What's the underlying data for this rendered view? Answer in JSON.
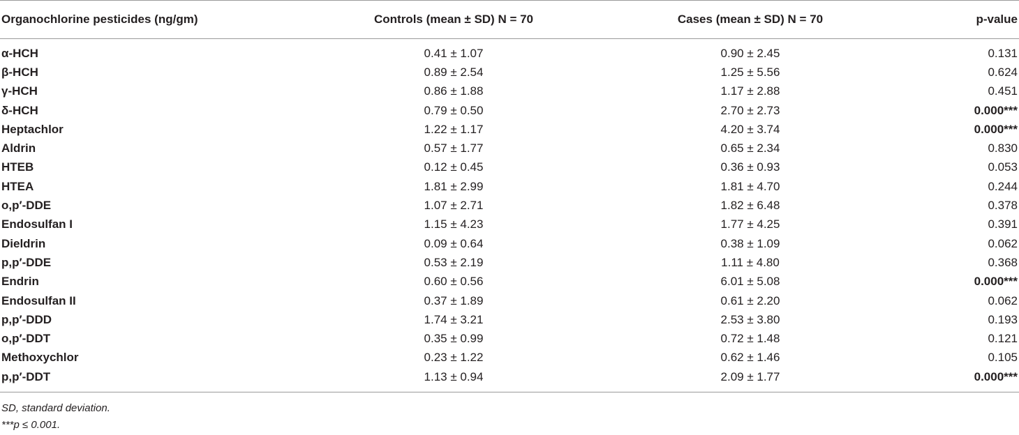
{
  "table": {
    "headers": [
      "Organochlorine pesticides (ng/gm)",
      "Controls (mean ± SD) N = 70",
      "Cases (mean ± SD) N = 70",
      "p-value"
    ],
    "rows": [
      {
        "name": "α-HCH",
        "controls": "0.41 ± 1.07",
        "cases": "0.90 ± 2.45",
        "p": "0.131",
        "sig": false
      },
      {
        "name": "β-HCH",
        "controls": "0.89 ± 2.54",
        "cases": "1.25 ± 5.56",
        "p": "0.624",
        "sig": false
      },
      {
        "name": "γ-HCH",
        "controls": "0.86 ± 1.88",
        "cases": "1.17 ± 2.88",
        "p": "0.451",
        "sig": false
      },
      {
        "name": "δ-HCH",
        "controls": "0.79 ± 0.50",
        "cases": "2.70 ± 2.73",
        "p": "0.000***",
        "sig": true
      },
      {
        "name": "Heptachlor",
        "controls": "1.22 ± 1.17",
        "cases": "4.20 ± 3.74",
        "p": "0.000***",
        "sig": true
      },
      {
        "name": "Aldrin",
        "controls": "0.57 ± 1.77",
        "cases": "0.65 ± 2.34",
        "p": "0.830",
        "sig": false
      },
      {
        "name": "HTEB",
        "controls": "0.12 ± 0.45",
        "cases": "0.36 ± 0.93",
        "p": "0.053",
        "sig": false
      },
      {
        "name": "HTEA",
        "controls": "1.81 ± 2.99",
        "cases": "1.81 ± 4.70",
        "p": "0.244",
        "sig": false
      },
      {
        "name": "o,p′-DDE",
        "controls": "1.07 ± 2.71",
        "cases": "1.82 ± 6.48",
        "p": "0.378",
        "sig": false
      },
      {
        "name": "Endosulfan I",
        "controls": "1.15 ± 4.23",
        "cases": "1.77 ± 4.25",
        "p": "0.391",
        "sig": false
      },
      {
        "name": "Dieldrin",
        "controls": "0.09 ± 0.64",
        "cases": "0.38 ± 1.09",
        "p": "0.062",
        "sig": false
      },
      {
        "name": "p,p′-DDE",
        "controls": "0.53 ± 2.19",
        "cases": "1.11 ± 4.80",
        "p": "0.368",
        "sig": false
      },
      {
        "name": "Endrin",
        "controls": "0.60 ± 0.56",
        "cases": "6.01 ± 5.08",
        "p": "0.000***",
        "sig": true
      },
      {
        "name": "Endosulfan II",
        "controls": "0.37 ± 1.89",
        "cases": "0.61 ± 2.20",
        "p": "0.062",
        "sig": false
      },
      {
        "name": "p,p′-DDD",
        "controls": "1.74 ± 3.21",
        "cases": "2.53 ± 3.80",
        "p": "0.193",
        "sig": false
      },
      {
        "name": "o,p′-DDT",
        "controls": "0.35 ± 0.99",
        "cases": "0.72 ± 1.48",
        "p": "0.121",
        "sig": false
      },
      {
        "name": "Methoxychlor",
        "controls": "0.23 ± 1.22",
        "cases": "0.62 ± 1.46",
        "p": "0.105",
        "sig": false
      },
      {
        "name": "p,p′-DDT",
        "controls": "1.13 ± 0.94",
        "cases": "2.09 ± 1.77",
        "p": "0.000***",
        "sig": true
      }
    ]
  },
  "footnotes": [
    "SD, standard deviation.",
    "***p ≤ 0.001."
  ]
}
